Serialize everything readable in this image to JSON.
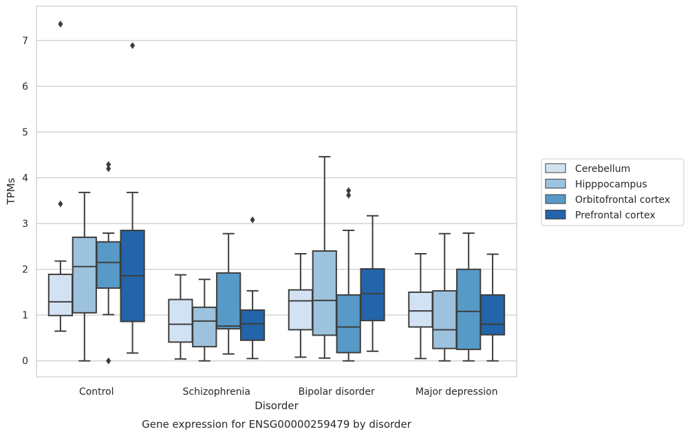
{
  "chart_data": {
    "type": "boxplot",
    "xlabel": "Disorder",
    "ylabel": "TPMs",
    "caption": "Gene expression for ENSG00000259479 by disorder",
    "ylim": [
      -0.35,
      7.75
    ],
    "yticks": [
      0,
      1,
      2,
      3,
      4,
      5,
      6,
      7
    ],
    "grid": "horizontal",
    "legend_position": "right",
    "categories": [
      "Control",
      "Schizophrenia",
      "Bipolar disorder",
      "Major depression"
    ],
    "series": [
      {
        "name": "Cerebellum",
        "color": "#d3e2f2",
        "boxes": [
          {
            "whisker_low": 0.65,
            "q1": 0.99,
            "median": 1.29,
            "q3": 1.89,
            "whisker_high": 2.18,
            "outliers": [
              3.43,
              7.36
            ]
          },
          {
            "whisker_low": 0.04,
            "q1": 0.41,
            "median": 0.8,
            "q3": 1.34,
            "whisker_high": 1.88,
            "outliers": []
          },
          {
            "whisker_low": 0.08,
            "q1": 0.68,
            "median": 1.31,
            "q3": 1.55,
            "whisker_high": 2.34,
            "outliers": []
          },
          {
            "whisker_low": 0.05,
            "q1": 0.74,
            "median": 1.09,
            "q3": 1.5,
            "whisker_high": 2.34,
            "outliers": []
          }
        ]
      },
      {
        "name": "Hipppocampus",
        "color": "#9dc2de",
        "boxes": [
          {
            "whisker_low": 0.0,
            "q1": 1.05,
            "median": 2.06,
            "q3": 2.7,
            "whisker_high": 3.68,
            "outliers": []
          },
          {
            "whisker_low": 0.0,
            "q1": 0.31,
            "median": 0.87,
            "q3": 1.17,
            "whisker_high": 1.78,
            "outliers": []
          },
          {
            "whisker_low": 0.06,
            "q1": 0.56,
            "median": 1.32,
            "q3": 2.4,
            "whisker_high": 4.46,
            "outliers": []
          },
          {
            "whisker_low": 0.0,
            "q1": 0.27,
            "median": 0.68,
            "q3": 1.53,
            "whisker_high": 2.78,
            "outliers": []
          }
        ]
      },
      {
        "name": "Orbitofrontal cortex",
        "color": "#5799c7",
        "boxes": [
          {
            "whisker_low": 1.01,
            "q1": 1.59,
            "median": 2.15,
            "q3": 2.6,
            "whisker_high": 2.79,
            "outliers": [
              0.0,
              4.2,
              4.29
            ]
          },
          {
            "whisker_low": 0.15,
            "q1": 0.7,
            "median": 0.76,
            "q3": 1.92,
            "whisker_high": 2.78,
            "outliers": []
          },
          {
            "whisker_low": 0.0,
            "q1": 0.18,
            "median": 0.74,
            "q3": 1.44,
            "whisker_high": 2.85,
            "outliers": [
              3.62,
              3.72
            ]
          },
          {
            "whisker_low": 0.0,
            "q1": 0.25,
            "median": 1.08,
            "q3": 2.0,
            "whisker_high": 2.79,
            "outliers": []
          }
        ]
      },
      {
        "name": "Prefrontal cortex",
        "color": "#2464a8",
        "boxes": [
          {
            "whisker_low": 0.17,
            "q1": 0.86,
            "median": 1.86,
            "q3": 2.85,
            "whisker_high": 3.68,
            "outliers": [
              6.89
            ]
          },
          {
            "whisker_low": 0.05,
            "q1": 0.45,
            "median": 0.81,
            "q3": 1.11,
            "whisker_high": 1.53,
            "outliers": [
              3.08
            ]
          },
          {
            "whisker_low": 0.21,
            "q1": 0.88,
            "median": 1.47,
            "q3": 2.01,
            "whisker_high": 3.17,
            "outliers": []
          },
          {
            "whisker_low": 0.0,
            "q1": 0.57,
            "median": 0.8,
            "q3": 1.44,
            "whisker_high": 2.33,
            "outliers": []
          }
        ]
      }
    ]
  }
}
